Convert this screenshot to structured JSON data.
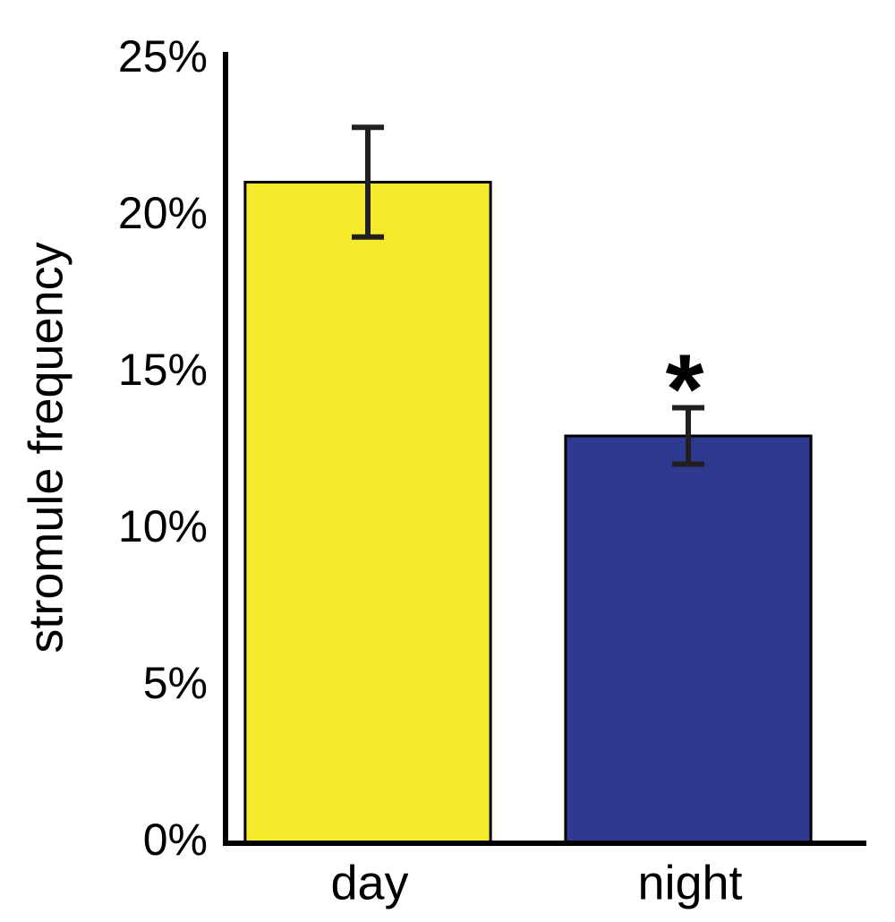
{
  "chart_data": {
    "type": "bar",
    "y_label": "stromule frequency",
    "categories": [
      "day",
      "night"
    ],
    "values": [
      21.1,
      13.0
    ],
    "errors": [
      1.75,
      0.9
    ],
    "colors": [
      "#f5e92e",
      "#2e3a8f"
    ],
    "annotation": "*",
    "annotation_category": "night",
    "ylim": [
      0,
      25
    ],
    "yticks": [
      {
        "value": 0,
        "label": "0%"
      },
      {
        "value": 5,
        "label": "5%"
      },
      {
        "value": 10,
        "label": "10%"
      },
      {
        "value": 15,
        "label": "15%"
      },
      {
        "value": 20,
        "label": "20%"
      },
      {
        "value": 25,
        "label": "25%"
      }
    ],
    "grid": false
  }
}
